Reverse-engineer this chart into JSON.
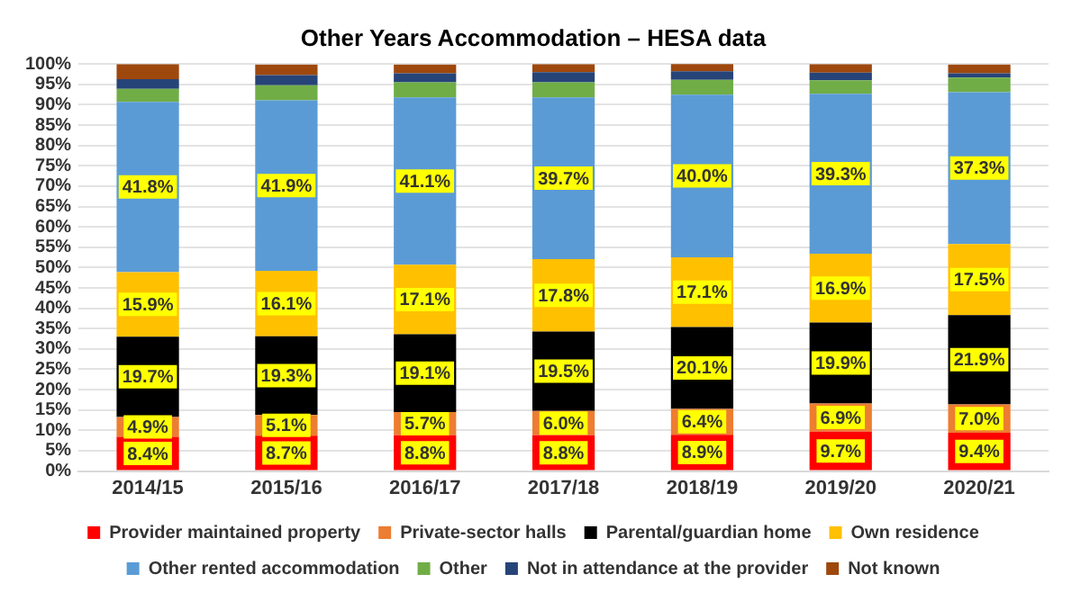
{
  "chart_data": {
    "type": "bar",
    "stacked": true,
    "title": "Other Years Accommodation – HESA data",
    "categories": [
      "2014/15",
      "2015/16",
      "2016/17",
      "2017/18",
      "2018/19",
      "2019/20",
      "2020/21"
    ],
    "series": [
      {
        "name": "Provider maintained property",
        "color": "#ff0000",
        "values": [
          8.4,
          8.7,
          8.8,
          8.8,
          8.9,
          9.7,
          9.4
        ],
        "value_labels": [
          "8.4%",
          "8.7%",
          "8.8%",
          "8.8%",
          "8.9%",
          "9.7%",
          "9.4%"
        ]
      },
      {
        "name": "Private-sector halls",
        "color": "#ed7d31",
        "values": [
          4.9,
          5.1,
          5.7,
          6.0,
          6.4,
          6.9,
          7.0
        ],
        "value_labels": [
          "4.9%",
          "5.1%",
          "5.7%",
          "6.0%",
          "6.4%",
          "6.9%",
          "7.0%"
        ]
      },
      {
        "name": "Parental/guardian home",
        "color": "#000000",
        "values": [
          19.7,
          19.3,
          19.1,
          19.5,
          20.1,
          19.9,
          21.9
        ],
        "value_labels": [
          "19.7%",
          "19.3%",
          "19.1%",
          "19.5%",
          "20.1%",
          "19.9%",
          "21.9%"
        ]
      },
      {
        "name": "Own residence",
        "color": "#ffc000",
        "values": [
          15.9,
          16.1,
          17.1,
          17.8,
          17.1,
          16.9,
          17.5
        ],
        "value_labels": [
          "15.9%",
          "16.1%",
          "17.1%",
          "17.8%",
          "17.1%",
          "16.9%",
          "17.5%"
        ]
      },
      {
        "name": "Other rented accommodation",
        "color": "#5b9bd5",
        "values": [
          41.8,
          41.9,
          41.1,
          39.7,
          40.0,
          39.3,
          37.3
        ],
        "value_labels": [
          "41.8%",
          "41.9%",
          "41.1%",
          "39.7%",
          "40.0%",
          "39.3%",
          "37.3%"
        ]
      },
      {
        "name": "Other",
        "color": "#70ad47",
        "values": [
          3.2,
          3.7,
          3.7,
          3.7,
          3.6,
          3.3,
          3.6
        ]
      },
      {
        "name": "Not in attendance at the provider",
        "color": "#264478",
        "values": [
          2.4,
          2.5,
          2.2,
          2.5,
          2.1,
          1.9,
          1.0
        ]
      },
      {
        "name": "Not known",
        "color": "#9e480e",
        "values": [
          3.7,
          2.6,
          2.2,
          2.0,
          1.9,
          2.1,
          2.2
        ]
      }
    ],
    "ylim": [
      0,
      100
    ],
    "yticks": [
      {
        "value": 0,
        "label": "0%"
      },
      {
        "value": 5,
        "label": "5%"
      },
      {
        "value": 10,
        "label": "10%"
      },
      {
        "value": 15,
        "label": "15%"
      },
      {
        "value": 20,
        "label": "20%"
      },
      {
        "value": 25,
        "label": "25%"
      },
      {
        "value": 30,
        "label": "30%"
      },
      {
        "value": 35,
        "label": "35%"
      },
      {
        "value": 40,
        "label": "40%"
      },
      {
        "value": 45,
        "label": "45%"
      },
      {
        "value": 50,
        "label": "50%"
      },
      {
        "value": 55,
        "label": "55%"
      },
      {
        "value": 60,
        "label": "60%"
      },
      {
        "value": 65,
        "label": "65%"
      },
      {
        "value": 70,
        "label": "70%"
      },
      {
        "value": 75,
        "label": "75%"
      },
      {
        "value": 80,
        "label": "80%"
      },
      {
        "value": 85,
        "label": "85%"
      },
      {
        "value": 90,
        "label": "90%"
      },
      {
        "value": 95,
        "label": "95%"
      },
      {
        "value": 100,
        "label": "100%"
      }
    ],
    "grid": "y",
    "legend": "bottom"
  }
}
